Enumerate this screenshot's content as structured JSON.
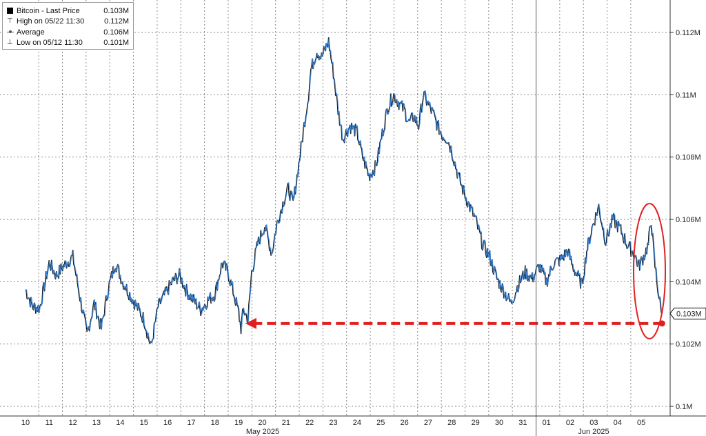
{
  "legend": {
    "items": [
      {
        "label": "Bitcoin - Last Price",
        "value": "0.103M",
        "symbol": "square"
      },
      {
        "label": "High on 05/22 11:30",
        "value": "0.112M",
        "symbol": "high"
      },
      {
        "label": "Average",
        "value": "0.106M",
        "symbol": "average"
      },
      {
        "label": "Low on 05/12 11:30",
        "value": "0.101M",
        "symbol": "low"
      }
    ]
  },
  "chart_data": {
    "type": "line",
    "series_name": "Bitcoin",
    "unit": "M",
    "ylim": [
      0.1,
      0.1125
    ],
    "yticks": [
      0.1,
      0.102,
      0.104,
      0.106,
      0.108,
      0.11,
      0.112
    ],
    "ytick_labels": [
      "0.1M",
      "0.102M",
      "0.104M",
      "0.106M",
      "0.108M",
      "0.11M",
      "0.112M"
    ],
    "last_price": 0.103,
    "last_price_label": "0.103M",
    "days": [
      "10",
      "11",
      "12",
      "13",
      "14",
      "15",
      "16",
      "17",
      "18",
      "19",
      "20",
      "21",
      "22",
      "23",
      "24",
      "25",
      "26",
      "27",
      "28",
      "29",
      "30",
      "31",
      "01",
      "02",
      "03",
      "04",
      "05"
    ],
    "months": [
      {
        "label": "May 2025",
        "from_day": 0,
        "to_day": 21
      },
      {
        "label": "Jun 2025",
        "from_day": 22,
        "to_day": 26
      }
    ],
    "points": [
      [
        0.0,
        0.10375
      ],
      [
        0.3,
        0.1032
      ],
      [
        0.6,
        0.10315
      ],
      [
        1.0,
        0.1046
      ],
      [
        1.3,
        0.1042
      ],
      [
        1.6,
        0.1045
      ],
      [
        2.0,
        0.1048
      ],
      [
        2.3,
        0.1035
      ],
      [
        2.6,
        0.1023
      ],
      [
        2.9,
        0.1033
      ],
      [
        3.2,
        0.1025
      ],
      [
        3.5,
        0.1038
      ],
      [
        3.8,
        0.1046
      ],
      [
        4.1,
        0.104
      ],
      [
        4.4,
        0.1036
      ],
      [
        4.7,
        0.1032
      ],
      [
        5.0,
        0.1028
      ],
      [
        5.3,
        0.1019
      ],
      [
        5.6,
        0.1032
      ],
      [
        5.9,
        0.1036
      ],
      [
        6.2,
        0.104
      ],
      [
        6.5,
        0.1042
      ],
      [
        6.8,
        0.1037
      ],
      [
        7.1,
        0.1034
      ],
      [
        7.4,
        0.1031
      ],
      [
        7.7,
        0.1034
      ],
      [
        8.0,
        0.1036
      ],
      [
        8.3,
        0.1046
      ],
      [
        8.55,
        0.1043
      ],
      [
        8.8,
        0.1036
      ],
      [
        9.0,
        0.103
      ],
      [
        9.1,
        0.1025
      ],
      [
        9.2,
        0.1031
      ],
      [
        9.4,
        0.1028
      ],
      [
        9.55,
        0.1043
      ],
      [
        9.8,
        0.1052
      ],
      [
        10.1,
        0.1058
      ],
      [
        10.4,
        0.1049
      ],
      [
        10.6,
        0.1058
      ],
      [
        10.9,
        0.1066
      ],
      [
        11.1,
        0.107
      ],
      [
        11.3,
        0.1065
      ],
      [
        11.6,
        0.1081
      ],
      [
        11.8,
        0.1092
      ],
      [
        11.95,
        0.11
      ],
      [
        12.05,
        0.1108
      ],
      [
        12.3,
        0.1114
      ],
      [
        12.5,
        0.1112
      ],
      [
        12.8,
        0.1117
      ],
      [
        13.0,
        0.1107
      ],
      [
        13.2,
        0.1095
      ],
      [
        13.4,
        0.1086
      ],
      [
        13.7,
        0.109
      ],
      [
        14.0,
        0.1088
      ],
      [
        14.2,
        0.1081
      ],
      [
        14.5,
        0.1074
      ],
      [
        14.8,
        0.1077
      ],
      [
        15.0,
        0.1085
      ],
      [
        15.3,
        0.1096
      ],
      [
        15.55,
        0.11
      ],
      [
        15.8,
        0.1097
      ],
      [
        16.0,
        0.1095
      ],
      [
        16.2,
        0.1091
      ],
      [
        16.4,
        0.1093
      ],
      [
        16.6,
        0.109
      ],
      [
        16.8,
        0.11
      ],
      [
        17.0,
        0.1097
      ],
      [
        17.2,
        0.1094
      ],
      [
        17.4,
        0.109
      ],
      [
        17.6,
        0.1087
      ],
      [
        17.8,
        0.1086
      ],
      [
        18.0,
        0.1082
      ],
      [
        18.2,
        0.1076
      ],
      [
        18.4,
        0.1071
      ],
      [
        18.7,
        0.1065
      ],
      [
        19.0,
        0.106
      ],
      [
        19.3,
        0.1052
      ],
      [
        19.6,
        0.1048
      ],
      [
        19.9,
        0.1041
      ],
      [
        20.2,
        0.1037
      ],
      [
        20.5,
        0.1033
      ],
      [
        20.8,
        0.1039
      ],
      [
        21.1,
        0.1043
      ],
      [
        21.4,
        0.1041
      ],
      [
        21.7,
        0.1045
      ],
      [
        22.0,
        0.104
      ],
      [
        22.3,
        0.1046
      ],
      [
        22.6,
        0.1047
      ],
      [
        22.9,
        0.105
      ],
      [
        23.1,
        0.1045
      ],
      [
        23.3,
        0.1042
      ],
      [
        23.5,
        0.1039
      ],
      [
        23.7,
        0.105
      ],
      [
        23.95,
        0.1058
      ],
      [
        24.2,
        0.1064
      ],
      [
        24.5,
        0.1053
      ],
      [
        24.8,
        0.106
      ],
      [
        25.1,
        0.1057
      ],
      [
        25.4,
        0.1052
      ],
      [
        25.7,
        0.1049
      ],
      [
        25.9,
        0.1045
      ],
      [
        26.1,
        0.1048
      ],
      [
        26.3,
        0.1052
      ],
      [
        26.42,
        0.106
      ],
      [
        26.55,
        0.1047
      ],
      [
        26.65,
        0.1041
      ],
      [
        26.75,
        0.1035
      ],
      [
        26.85,
        0.103
      ]
    ]
  },
  "annotation": {
    "type": "dashed-arrow",
    "from_day": 26.85,
    "to_day": 9.4,
    "value": 0.10266,
    "color": "#e02020"
  }
}
